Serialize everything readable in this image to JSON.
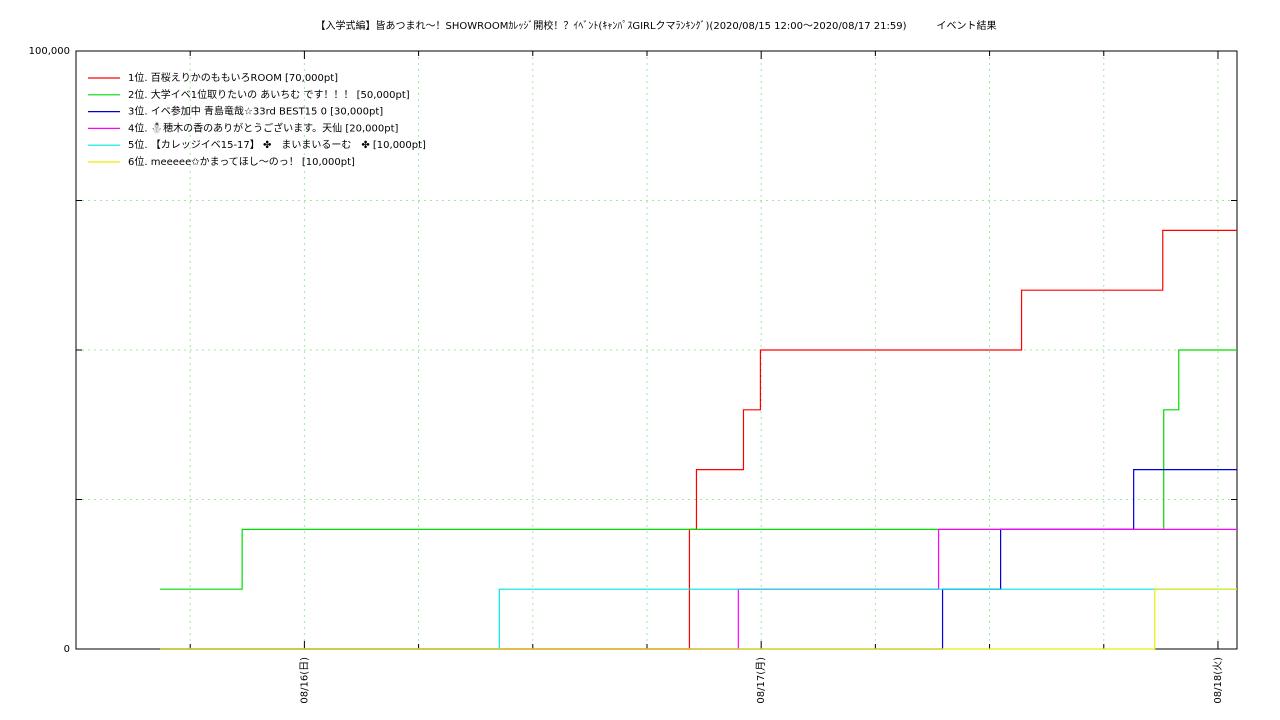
{
  "chart_data": {
    "type": "line",
    "step": true,
    "title": "【入学式編】皆あつまれ〜！SHOWROOMｶﾚｯｼﾞ開校！？ｲﾍﾞﾝﾄ(ｷｬﾝﾊﾟｽGIRLクマﾗﾝｷﾝｸﾞ)(2020/08/15 12:00〜2020/08/17 21:59)　　　イベント結果",
    "xlim": [
      0,
      61
    ],
    "xticks": [
      {
        "value": 12,
        "label": "08/16(日)"
      },
      {
        "value": 36,
        "label": "08/17(月)"
      },
      {
        "value": 60,
        "label": "08/18(火)"
      }
    ],
    "x_minor_ticks": [
      6,
      18,
      24,
      30,
      42,
      48,
      54
    ],
    "ylim": [
      0,
      100000
    ],
    "yticks": [
      0,
      {
        "value": 100000,
        "label": "100,000"
      }
    ],
    "y_minor_ticks": [
      25000,
      50000,
      75000
    ],
    "grid": true,
    "legend": "top-left",
    "series": [
      {
        "name": "1位. 百桜えりかのももいろROOM [70,000pt]",
        "color": "#ff0000",
        "x": [
          4.42,
          32.23,
          32.6,
          35.07,
          35.96,
          49.68,
          57.1,
          61
        ],
        "values": [
          0,
          20000,
          30000,
          40000,
          50000,
          60000,
          70000,
          70000
        ]
      },
      {
        "name": "2位. 大学イベ1位取りたいの あいちむ です！！！ [50,000pt]",
        "color": "#00dd00",
        "x": [
          4.42,
          8.73,
          57.15,
          57.94,
          61
        ],
        "values": [
          10000,
          20000,
          40000,
          50000,
          50000
        ]
      },
      {
        "name": "3位. イベ参加中 青島竜哉☆33rd BEST15 0 [30,000pt]",
        "color": "#0000dd",
        "x": [
          4.42,
          45.53,
          48.58,
          55.57,
          61
        ],
        "values": [
          0,
          10000,
          20000,
          30000,
          30000
        ]
      },
      {
        "name": "4位. ⛄穂木の香のありがとうございます。天仙 [20,000pt]",
        "color": "#ff00ff",
        "x": [
          4.42,
          34.8,
          45.32,
          61
        ],
        "values": [
          0,
          10000,
          20000,
          20000
        ]
      },
      {
        "name": "5位. 【カレッジイベ15-17】 ✤　まいまいるーむ　✤ [10,000pt]",
        "color": "#00e5e5",
        "x": [
          4.42,
          22.24,
          61
        ],
        "values": [
          0,
          10000,
          10000
        ]
      },
      {
        "name": "6位. meeeee✩かまってほし〜のっ！ [10,000pt]",
        "color": "#eeee00",
        "x": [
          4.42,
          56.68,
          61
        ],
        "values": [
          0,
          10000,
          10000
        ]
      }
    ]
  }
}
